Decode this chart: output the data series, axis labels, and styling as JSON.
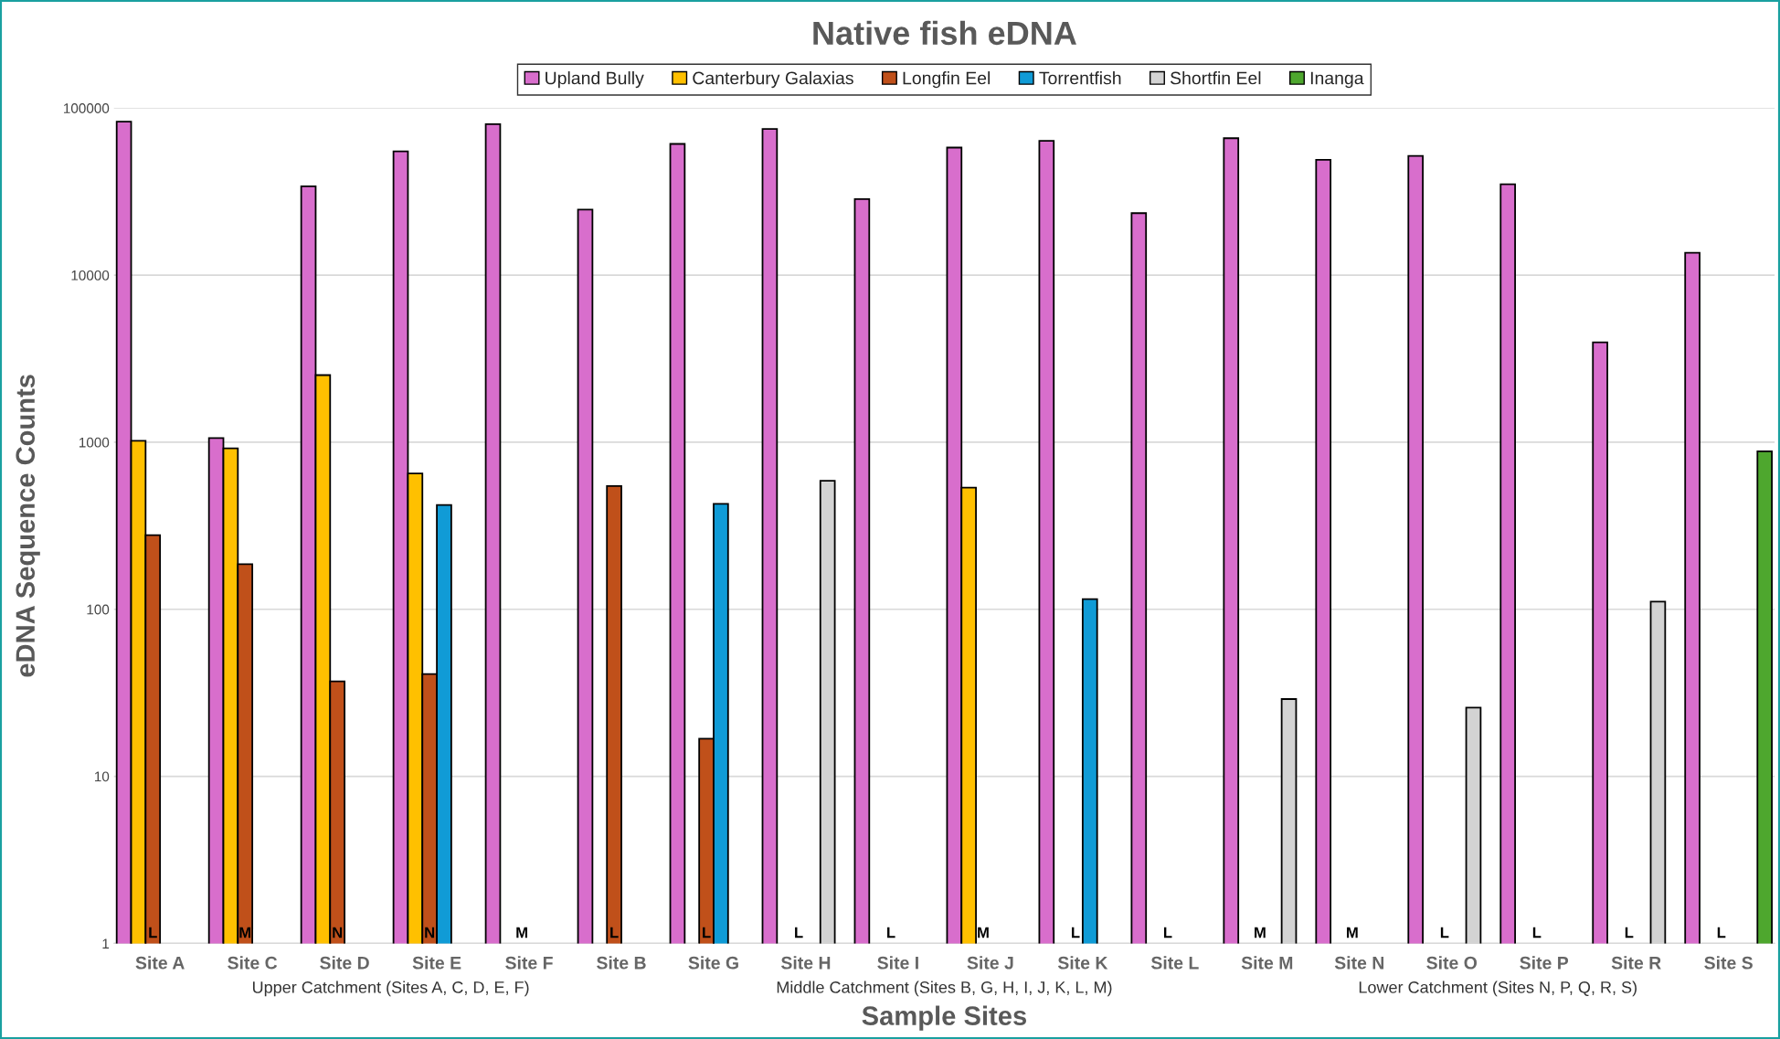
{
  "chart_data": {
    "type": "bar",
    "title": "Native fish eDNA",
    "xlabel": "Sample Sites",
    "ylabel": "eDNA Sequence Counts",
    "categories": [
      "Site A",
      "Site C",
      "Site D",
      "Site E",
      "Site F",
      "Site B",
      "Site G",
      "Site H",
      "Site I",
      "Site J",
      "Site K",
      "Site L",
      "Site M",
      "Site N",
      "Site O",
      "Site P",
      "Site R",
      "Site S"
    ],
    "series": [
      {
        "name": "Upland Bully",
        "color": "#d86ecc",
        "values": [
          83000,
          1060,
          34000,
          55000,
          80000,
          24700,
          61000,
          75000,
          28500,
          58000,
          63600,
          23500,
          66000,
          49000,
          51700,
          35000,
          3960,
          13600
        ]
      },
      {
        "name": "Canterbury Galaxias",
        "color": "#ffc000",
        "values": [
          1020,
          920,
          2520,
          650,
          null,
          null,
          null,
          null,
          null,
          534,
          null,
          null,
          null,
          null,
          null,
          null,
          null,
          null
        ]
      },
      {
        "name": "Longfin Eel",
        "color": "#c0501a",
        "values": [
          278,
          186,
          37,
          41,
          null,
          547,
          16.8,
          null,
          null,
          null,
          null,
          null,
          null,
          null,
          null,
          null,
          null,
          null
        ]
      },
      {
        "name": "Torrentfish",
        "color": "#109bd6",
        "values": [
          null,
          null,
          null,
          421,
          null,
          null,
          428,
          null,
          null,
          null,
          115,
          null,
          null,
          null,
          null,
          null,
          null,
          null
        ]
      },
      {
        "name": "Shortfin Eel",
        "color": "#d3d3d3",
        "values": [
          null,
          null,
          null,
          null,
          null,
          null,
          null,
          588,
          null,
          null,
          null,
          null,
          29,
          null,
          25.8,
          null,
          111,
          null
        ]
      },
      {
        "name": "Inanga",
        "color": "#4ea72e",
        "values": [
          null,
          null,
          null,
          null,
          null,
          null,
          null,
          null,
          null,
          null,
          null,
          null,
          null,
          null,
          null,
          null,
          null,
          882
        ]
      }
    ],
    "log": "y",
    "ylim": [
      1,
      100000
    ],
    "yticks": [
      1,
      10,
      100,
      1000,
      10000,
      100000
    ],
    "grid": "y",
    "legend": "top",
    "annotations": [
      "L",
      "M",
      "N",
      "N",
      "M",
      "L",
      "L",
      "L",
      "L",
      "M",
      "L",
      "L",
      "M",
      "M",
      "L",
      "L",
      "L",
      "L",
      "Upper Catchment (Sites A, C, D, E, F)",
      "Middle Catchment (Sites B, G, H, I, J, K, L, M)",
      "Lower Catchment (Sites N, P, Q, R, S)"
    ]
  }
}
